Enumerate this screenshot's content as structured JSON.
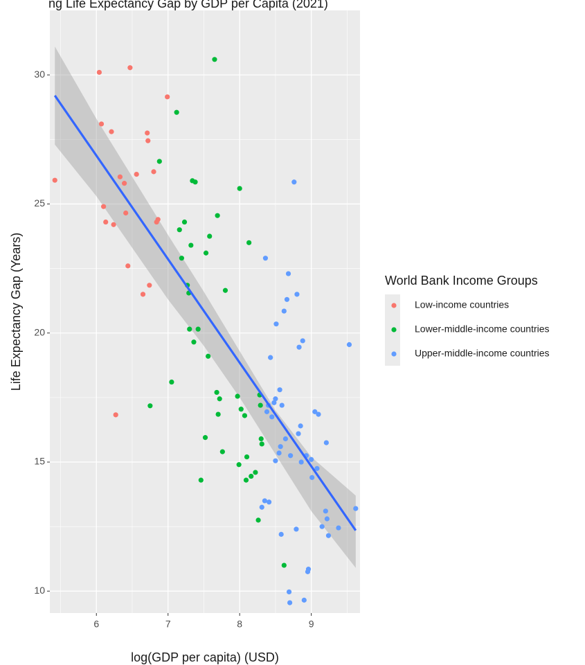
{
  "chart_data": {
    "type": "scatter",
    "title": "ng Life Expectancy Gap by GDP per Capita (2021)",
    "xlabel": "log(GDP per capita) (USD)",
    "ylabel": "Life Expectancy Gap (Years)",
    "xlim": [
      5.35,
      9.68
    ],
    "ylim": [
      9.15,
      32.5
    ],
    "x_ticks": [
      6,
      7,
      8,
      9
    ],
    "y_ticks": [
      10,
      15,
      20,
      25,
      30
    ],
    "grid": true,
    "legend_position": "right",
    "legend_title": "World Bank Income Groups",
    "series": [
      {
        "name": "Low-income countries",
        "color": "#F8766D",
        "points": [
          [
            5.42,
            25.92
          ],
          [
            6.04,
            30.1
          ],
          [
            6.07,
            28.1
          ],
          [
            6.1,
            24.9
          ],
          [
            6.13,
            24.3
          ],
          [
            6.21,
            27.8
          ],
          [
            6.24,
            24.2
          ],
          [
            6.27,
            16.83
          ],
          [
            6.33,
            26.05
          ],
          [
            6.39,
            25.8
          ],
          [
            6.41,
            24.65
          ],
          [
            6.44,
            22.6
          ],
          [
            6.47,
            30.28
          ],
          [
            6.56,
            26.15
          ],
          [
            6.65,
            21.5
          ],
          [
            6.71,
            27.75
          ],
          [
            6.72,
            27.45
          ],
          [
            6.74,
            21.85
          ],
          [
            6.8,
            26.25
          ],
          [
            6.84,
            24.3
          ],
          [
            6.86,
            24.4
          ],
          [
            6.99,
            29.15
          ]
        ]
      },
      {
        "name": "Lower-middle-income countries",
        "color": "#00BA38",
        "points": [
          [
            6.75,
            17.18
          ],
          [
            6.88,
            26.65
          ],
          [
            7.05,
            18.1
          ],
          [
            7.12,
            28.55
          ],
          [
            7.16,
            24.0
          ],
          [
            7.19,
            22.9
          ],
          [
            7.23,
            24.3
          ],
          [
            7.27,
            21.85
          ],
          [
            7.29,
            21.55
          ],
          [
            7.3,
            20.15
          ],
          [
            7.32,
            23.4
          ],
          [
            7.34,
            25.9
          ],
          [
            7.36,
            19.65
          ],
          [
            7.38,
            25.85
          ],
          [
            7.42,
            20.15
          ],
          [
            7.46,
            14.3
          ],
          [
            7.52,
            15.95
          ],
          [
            7.53,
            23.1
          ],
          [
            7.56,
            19.1
          ],
          [
            7.58,
            23.75
          ],
          [
            7.65,
            30.6
          ],
          [
            7.68,
            17.7
          ],
          [
            7.69,
            24.55
          ],
          [
            7.7,
            16.85
          ],
          [
            7.72,
            17.45
          ],
          [
            7.76,
            15.4
          ],
          [
            7.8,
            21.65
          ],
          [
            7.97,
            17.55
          ],
          [
            7.99,
            14.9
          ],
          [
            8.0,
            25.6
          ],
          [
            8.02,
            17.05
          ],
          [
            8.07,
            16.8
          ],
          [
            8.09,
            14.3
          ],
          [
            8.1,
            15.2
          ],
          [
            8.13,
            23.5
          ],
          [
            8.16,
            14.45
          ],
          [
            8.22,
            14.6
          ],
          [
            8.26,
            12.75
          ],
          [
            8.28,
            17.6
          ],
          [
            8.29,
            17.2
          ],
          [
            8.3,
            15.9
          ],
          [
            8.31,
            15.7
          ],
          [
            8.62,
            11.0
          ]
        ]
      },
      {
        "name": "Upper-middle-income countries",
        "color": "#619CFF",
        "points": [
          [
            8.31,
            13.25
          ],
          [
            8.35,
            13.5
          ],
          [
            8.36,
            22.9
          ],
          [
            8.38,
            16.95
          ],
          [
            8.4,
            17.2
          ],
          [
            8.41,
            13.45
          ],
          [
            8.43,
            19.05
          ],
          [
            8.45,
            16.75
          ],
          [
            8.48,
            17.3
          ],
          [
            8.5,
            15.05
          ],
          [
            8.5,
            17.45
          ],
          [
            8.51,
            20.35
          ],
          [
            8.55,
            15.35
          ],
          [
            8.56,
            17.8
          ],
          [
            8.57,
            15.6
          ],
          [
            8.58,
            12.2
          ],
          [
            8.59,
            17.2
          ],
          [
            8.62,
            20.85
          ],
          [
            8.64,
            15.9
          ],
          [
            8.66,
            21.3
          ],
          [
            8.68,
            22.3
          ],
          [
            8.69,
            9.97
          ],
          [
            8.7,
            9.55
          ],
          [
            8.71,
            15.25
          ],
          [
            8.76,
            25.85
          ],
          [
            8.79,
            12.4
          ],
          [
            8.8,
            21.5
          ],
          [
            8.82,
            16.1
          ],
          [
            8.83,
            19.45
          ],
          [
            8.85,
            16.4
          ],
          [
            8.86,
            15.0
          ],
          [
            8.88,
            19.7
          ],
          [
            8.9,
            9.65
          ],
          [
            8.93,
            15.25
          ],
          [
            8.95,
            10.75
          ],
          [
            8.96,
            10.85
          ],
          [
            9.0,
            15.1
          ],
          [
            9.01,
            14.4
          ],
          [
            9.05,
            16.95
          ],
          [
            9.08,
            14.75
          ],
          [
            9.1,
            16.85
          ],
          [
            9.15,
            12.5
          ],
          [
            9.2,
            13.1
          ],
          [
            9.21,
            15.75
          ],
          [
            9.22,
            12.8
          ],
          [
            9.24,
            12.15
          ],
          [
            9.38,
            12.45
          ],
          [
            9.53,
            19.55
          ],
          [
            9.62,
            13.2
          ]
        ]
      }
    ],
    "regression": {
      "method": "linear",
      "color": "#3366FF",
      "line": [
        [
          5.42,
          29.2
        ],
        [
          9.62,
          12.35
        ]
      ],
      "confidence_band": {
        "color": "#999999",
        "upper": [
          [
            5.42,
            31.1
          ],
          [
            6.0,
            28.3
          ],
          [
            7.0,
            23.8
          ],
          [
            7.5,
            21.6
          ],
          [
            8.0,
            19.3
          ],
          [
            8.5,
            17.0
          ],
          [
            9.0,
            15.2
          ],
          [
            9.62,
            13.7
          ]
        ],
        "lower": [
          [
            5.42,
            27.3
          ],
          [
            6.0,
            25.3
          ],
          [
            7.0,
            21.3
          ],
          [
            7.5,
            19.5
          ],
          [
            8.0,
            17.5
          ],
          [
            8.5,
            15.3
          ],
          [
            9.0,
            13.1
          ],
          [
            9.62,
            10.9
          ]
        ]
      }
    }
  }
}
